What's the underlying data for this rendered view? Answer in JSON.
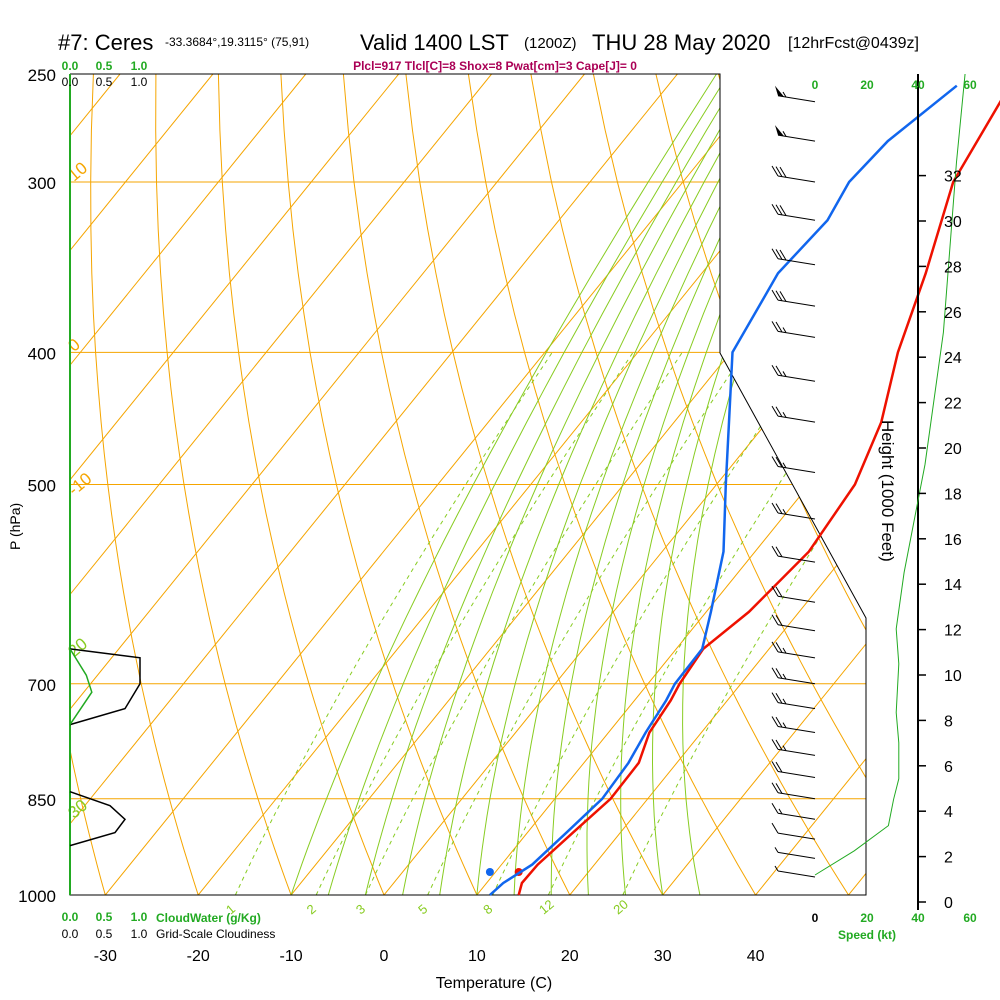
{
  "header": {
    "station": "#7: Ceres",
    "location": "-33.3684°,19.3115° (75,91)",
    "valid": "Valid 1400 LST",
    "zulu": "(1200Z)",
    "date": "THU 28 May 2020",
    "forecast": "[12hrFcst@0439z]",
    "indices": "Plcl=917 Tlcl[C]=8 Shox=8 Pwat[cm]=3 Cape[J]= 0"
  },
  "colors": {
    "temperature": "#ee1100",
    "dewpoint": "#1166ee",
    "isotherm": "#f5a500",
    "adiabat": "#88cc22",
    "cloud": "#22aa22",
    "ink": "#000000",
    "index": "#aa0055"
  },
  "labels": {
    "pressure_axis": "P (hPa)",
    "temperature_axis": "Temperature (C)",
    "height_axis": "Height (1000 Feet)",
    "cloudwater": "CloudWater (g/Kg)",
    "cloudiness": "Grid-Scale Cloudiness",
    "speed": "Speed (kt)"
  },
  "chart_data": {
    "type": "line",
    "diagram": "skew-T log-P sounding",
    "x_axis": {
      "label": "Temperature (C)",
      "ticks": [
        -30,
        -20,
        -10,
        0,
        10,
        20,
        30,
        40
      ]
    },
    "y_axis": {
      "label": "P (hPa)",
      "scale": "log",
      "ticks": [
        250,
        300,
        400,
        500,
        700,
        850,
        1000
      ]
    },
    "height_axis": {
      "label": "Height (1000 Feet)",
      "ticks": [
        0,
        2,
        4,
        6,
        8,
        10,
        12,
        14,
        16,
        18,
        20,
        22,
        24,
        26,
        28,
        30,
        32
      ]
    },
    "cloudwater_ticks": [
      "0.0",
      "0.5",
      "1.0"
    ],
    "cloudiness_ticks": [
      "0.0",
      "0.5",
      "1.0"
    ],
    "speed_ticks": [
      0,
      20,
      40,
      60
    ],
    "skewt_annotations": [
      {
        "text": "10",
        "p": 300,
        "t": -33
      },
      {
        "text": "0",
        "p": 400,
        "t": -33
      },
      {
        "text": "-10",
        "p": 510,
        "t": -33
      },
      {
        "text": "0",
        "p": 345,
        "t": 37
      },
      {
        "text": "10",
        "p": 410,
        "t": 39
      },
      {
        "text": "20",
        "p": 475,
        "t": 40
      },
      {
        "text": "30",
        "p": 565,
        "t": 47
      },
      {
        "text": "1",
        "p": 1010,
        "t": -16
      },
      {
        "text": "2",
        "p": 1010,
        "t": -7.3
      },
      {
        "text": "3",
        "p": 1010,
        "t": -2
      },
      {
        "text": "5",
        "p": 1010,
        "t": 4.7
      },
      {
        "text": "8",
        "p": 1010,
        "t": 11.7
      },
      {
        "text": "12",
        "p": 1010,
        "t": 17.7
      },
      {
        "text": "20",
        "p": 1010,
        "t": 25.7
      },
      {
        "text": "20",
        "p": 670,
        "t": -33
      },
      {
        "text": "30",
        "p": 880,
        "t": -33
      }
    ],
    "series": [
      {
        "name": "Temperature",
        "points": [
          [
            1000,
            14.5
          ],
          [
            980,
            13.8
          ],
          [
            950,
            13.9
          ],
          [
            900,
            14.9
          ],
          [
            850,
            16.0
          ],
          [
            800,
            15.9
          ],
          [
            760,
            14.4
          ],
          [
            720,
            13.9
          ],
          [
            700,
            13.4
          ],
          [
            660,
            12.9
          ],
          [
            620,
            14.6
          ],
          [
            560,
            15.8
          ],
          [
            500,
            14.9
          ],
          [
            450,
            12.3
          ],
          [
            400,
            8.0
          ],
          [
            350,
            4.1
          ],
          [
            300,
            -0.9
          ],
          [
            255,
            -3.2
          ]
        ]
      },
      {
        "name": "Dewpoint",
        "points": [
          [
            1000,
            11.4
          ],
          [
            980,
            11.8
          ],
          [
            950,
            13.3
          ],
          [
            900,
            14.2
          ],
          [
            850,
            15.1
          ],
          [
            800,
            14.8
          ],
          [
            760,
            14.0
          ],
          [
            720,
            13.4
          ],
          [
            700,
            12.9
          ],
          [
            660,
            12.8
          ],
          [
            620,
            10.5
          ],
          [
            560,
            6.6
          ],
          [
            500,
            1.0
          ],
          [
            450,
            -4.1
          ],
          [
            400,
            -9.8
          ],
          [
            350,
            -11.8
          ],
          [
            320,
            -11.1
          ],
          [
            300,
            -12.1
          ],
          [
            280,
            -11.5
          ],
          [
            255,
            -8.9
          ]
        ]
      }
    ],
    "wind_barbs": [
      {
        "p": 262,
        "kt": 55
      },
      {
        "p": 280,
        "kt": 55
      },
      {
        "p": 300,
        "kt": 30
      },
      {
        "p": 320,
        "kt": 30
      },
      {
        "p": 345,
        "kt": 30
      },
      {
        "p": 370,
        "kt": 30
      },
      {
        "p": 390,
        "kt": 25
      },
      {
        "p": 420,
        "kt": 25
      },
      {
        "p": 450,
        "kt": 25
      },
      {
        "p": 490,
        "kt": 25
      },
      {
        "p": 530,
        "kt": 25
      },
      {
        "p": 570,
        "kt": 20
      },
      {
        "p": 610,
        "kt": 20
      },
      {
        "p": 640,
        "kt": 20
      },
      {
        "p": 670,
        "kt": 25
      },
      {
        "p": 700,
        "kt": 25
      },
      {
        "p": 730,
        "kt": 25
      },
      {
        "p": 760,
        "kt": 25
      },
      {
        "p": 790,
        "kt": 25
      },
      {
        "p": 820,
        "kt": 20
      },
      {
        "p": 850,
        "kt": 20
      },
      {
        "p": 880,
        "kt": 15
      },
      {
        "p": 910,
        "kt": 10
      },
      {
        "p": 940,
        "kt": 5
      },
      {
        "p": 970,
        "kt": 5
      }
    ],
    "cloudiness_profile": [
      [
        660,
        0.0
      ],
      [
        670,
        0.7
      ],
      [
        700,
        0.7
      ],
      [
        730,
        0.55
      ],
      [
        750,
        0.0
      ],
      [
        840,
        0.0
      ],
      [
        860,
        0.4
      ],
      [
        880,
        0.55
      ],
      [
        900,
        0.45
      ],
      [
        920,
        0.0
      ]
    ],
    "cloudwater_profile": [
      [
        660,
        0.0
      ],
      [
        690,
        0.15
      ],
      [
        710,
        0.2
      ],
      [
        750,
        0.0
      ]
    ],
    "speed_profile": [
      [
        1000,
        0
      ],
      [
        960,
        15
      ],
      [
        920,
        28
      ],
      [
        880,
        30
      ],
      [
        850,
        32
      ],
      [
        800,
        32
      ],
      [
        760,
        31
      ],
      [
        700,
        32
      ],
      [
        660,
        31
      ],
      [
        600,
        34
      ],
      [
        500,
        42
      ],
      [
        400,
        49
      ],
      [
        300,
        54
      ],
      [
        250,
        58
      ]
    ]
  }
}
